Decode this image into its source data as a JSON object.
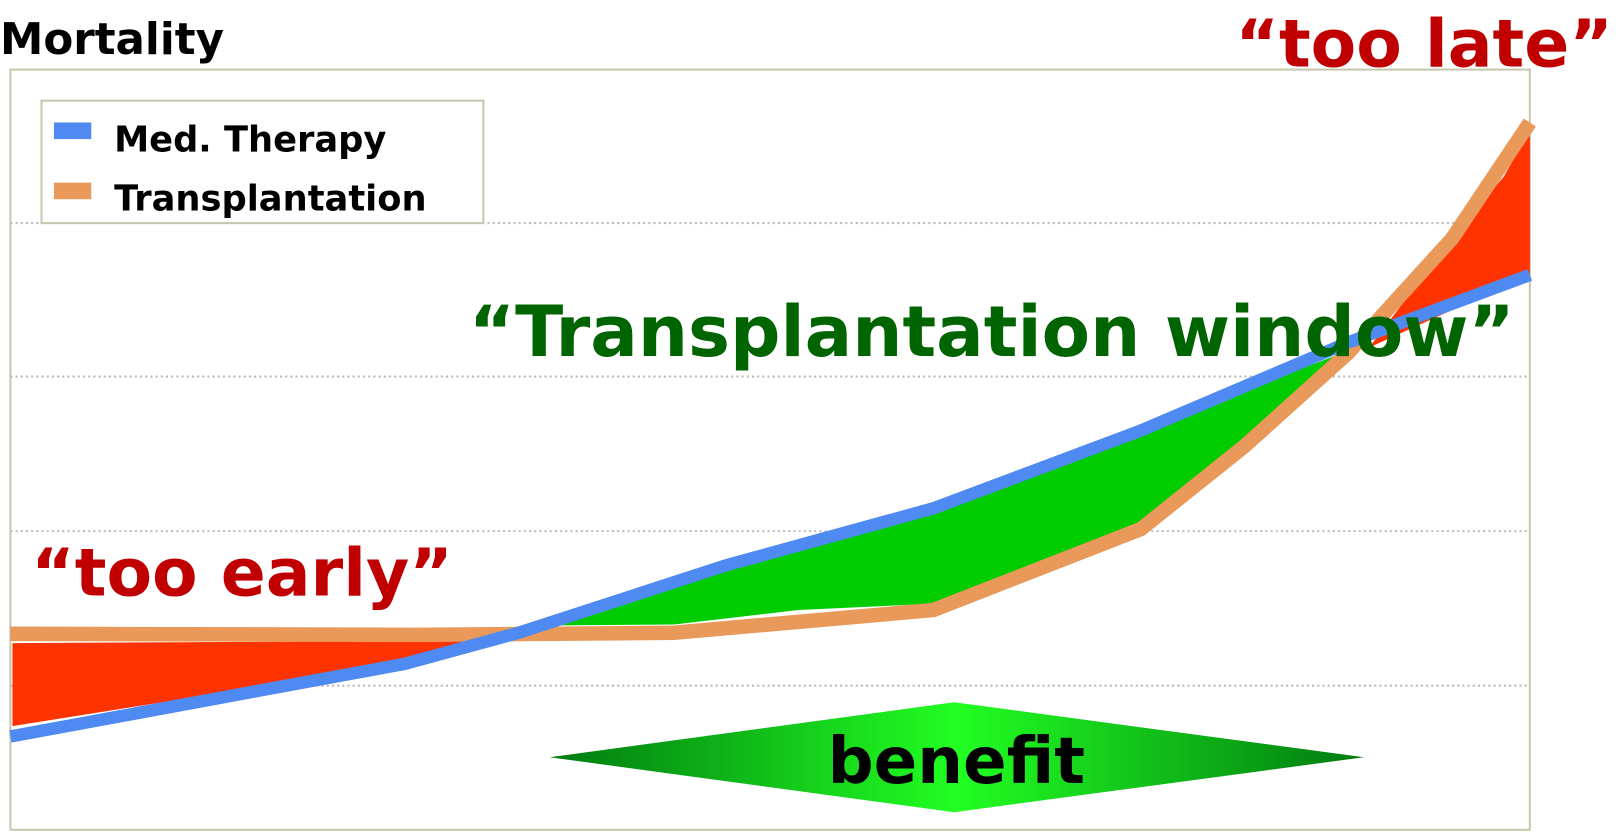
{
  "title": "Mortality",
  "legend": [
    {
      "label": "Med. Therapy",
      "color": "#4f8af2"
    },
    {
      "label": "Transplantation",
      "color": "#e9995a"
    }
  ],
  "annotations": {
    "too_late": "“too late”",
    "window": "“Transplantation window”",
    "too_early": "“too early”",
    "benefit": "benefit"
  }
}
